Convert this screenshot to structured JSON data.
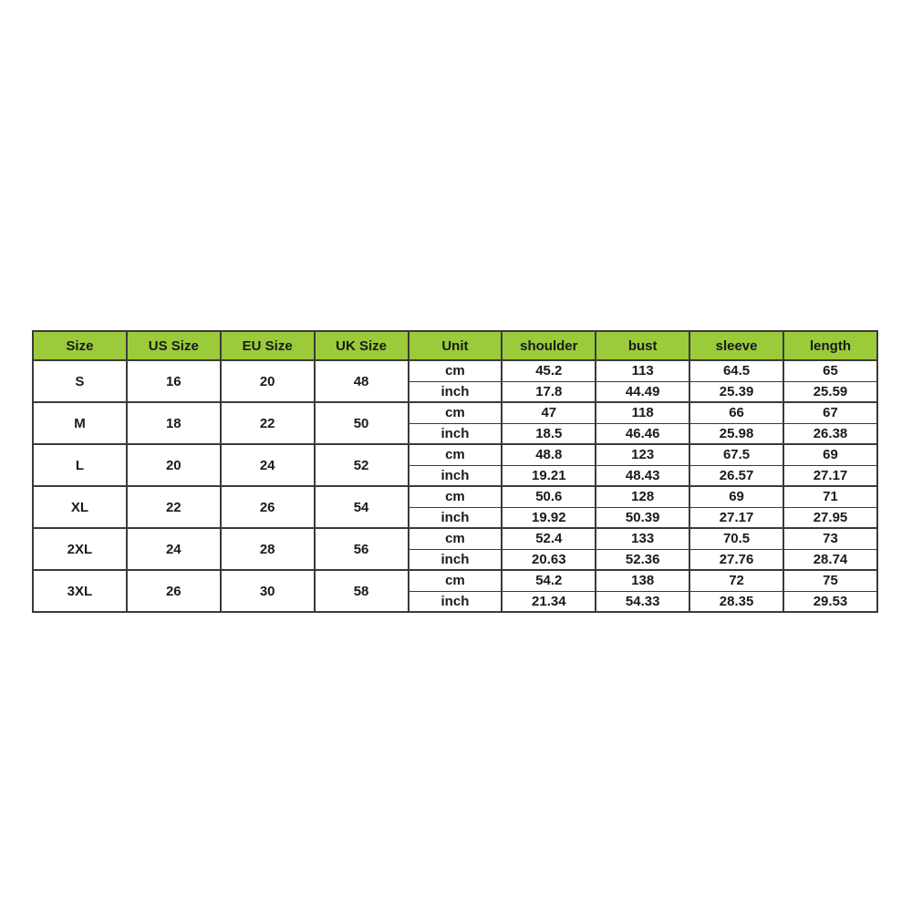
{
  "page": {
    "background": "#FFFFFF"
  },
  "size_chart": {
    "colors": {
      "header_bg": "#9BCB3A",
      "border": "#3A3A3A",
      "text": "#1A1A1A",
      "row_bg": "#FFFFFF"
    },
    "columns": [
      "Size",
      "US Size",
      "EU Size",
      "UK Size",
      "Unit",
      "shoulder",
      "bust",
      "sleeve",
      "length"
    ],
    "rows": [
      {
        "size": "S",
        "us": "16",
        "eu": "20",
        "uk": "48",
        "cm_label": "cm",
        "inch_label": "inch",
        "cm": [
          "45.2",
          "113",
          "64.5",
          "65"
        ],
        "inch": [
          "17.8",
          "44.49",
          "25.39",
          "25.59"
        ]
      },
      {
        "size": "M",
        "us": "18",
        "eu": "22",
        "uk": "50",
        "cm_label": "cm",
        "inch_label": "inch",
        "cm": [
          "47",
          "118",
          "66",
          "67"
        ],
        "inch": [
          "18.5",
          "46.46",
          "25.98",
          "26.38"
        ]
      },
      {
        "size": "L",
        "us": "20",
        "eu": "24",
        "uk": "52",
        "cm_label": "cm",
        "inch_label": "inch",
        "cm": [
          "48.8",
          "123",
          "67.5",
          "69"
        ],
        "inch": [
          "19.21",
          "48.43",
          "26.57",
          "27.17"
        ]
      },
      {
        "size": "XL",
        "us": "22",
        "eu": "26",
        "uk": "54",
        "cm_label": "cm",
        "inch_label": "inch",
        "cm": [
          "50.6",
          "128",
          "69",
          "71"
        ],
        "inch": [
          "19.92",
          "50.39",
          "27.17",
          "27.95"
        ]
      },
      {
        "size": "2XL",
        "us": "24",
        "eu": "28",
        "uk": "56",
        "cm_label": "cm",
        "inch_label": "inch",
        "cm": [
          "52.4",
          "133",
          "70.5",
          "73"
        ],
        "inch": [
          "20.63",
          "52.36",
          "27.76",
          "28.74"
        ]
      },
      {
        "size": "3XL",
        "us": "26",
        "eu": "30",
        "uk": "58",
        "cm_label": "cm",
        "inch_label": "inch",
        "cm": [
          "54.2",
          "138",
          "72",
          "75"
        ],
        "inch": [
          "21.34",
          "54.33",
          "28.35",
          "29.53"
        ]
      }
    ]
  },
  "chart_data": {
    "type": "table",
    "columns": [
      "Size",
      "US Size",
      "EU Size",
      "UK Size",
      "Unit",
      "shoulder",
      "bust",
      "sleeve",
      "length"
    ],
    "rows": [
      [
        "S",
        "16",
        "20",
        "48",
        "cm",
        "45.2",
        "113",
        "64.5",
        "65"
      ],
      [
        "S",
        "16",
        "20",
        "48",
        "inch",
        "17.8",
        "44.49",
        "25.39",
        "25.59"
      ],
      [
        "M",
        "18",
        "22",
        "50",
        "cm",
        "47",
        "118",
        "66",
        "67"
      ],
      [
        "M",
        "18",
        "22",
        "50",
        "inch",
        "18.5",
        "46.46",
        "25.98",
        "26.38"
      ],
      [
        "L",
        "20",
        "24",
        "52",
        "cm",
        "48.8",
        "123",
        "67.5",
        "69"
      ],
      [
        "L",
        "20",
        "24",
        "52",
        "inch",
        "19.21",
        "48.43",
        "26.57",
        "27.17"
      ],
      [
        "XL",
        "22",
        "26",
        "54",
        "cm",
        "50.6",
        "128",
        "69",
        "71"
      ],
      [
        "XL",
        "22",
        "26",
        "54",
        "inch",
        "19.92",
        "50.39",
        "27.17",
        "27.95"
      ],
      [
        "2XL",
        "24",
        "28",
        "56",
        "cm",
        "52.4",
        "133",
        "70.5",
        "73"
      ],
      [
        "2XL",
        "24",
        "28",
        "56",
        "inch",
        "20.63",
        "52.36",
        "27.76",
        "28.74"
      ],
      [
        "3XL",
        "26",
        "30",
        "58",
        "cm",
        "54.2",
        "138",
        "72",
        "75"
      ],
      [
        "3XL",
        "26",
        "30",
        "58",
        "inch",
        "21.34",
        "54.33",
        "28.35",
        "29.53"
      ]
    ]
  }
}
